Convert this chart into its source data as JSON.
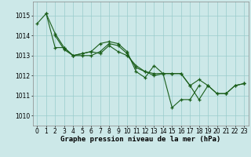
{
  "series": [
    {
      "x": [
        0,
        1,
        2,
        3,
        4,
        5,
        6,
        7,
        8,
        9,
        10,
        11,
        12,
        13,
        14,
        15,
        16,
        17,
        18,
        19,
        20,
        21,
        22,
        23
      ],
      "y": [
        1014.6,
        1015.1,
        1014.1,
        1013.4,
        1013.0,
        1013.1,
        1013.2,
        1013.6,
        1013.7,
        1013.6,
        1013.2,
        1012.2,
        1011.9,
        1012.5,
        1012.1,
        1010.4,
        1010.8,
        1010.8,
        1011.5,
        null,
        null,
        1011.1,
        null,
        1011.6
      ]
    },
    {
      "x": [
        1,
        2,
        3,
        4,
        5,
        6,
        7,
        8,
        9,
        10,
        11,
        12,
        13,
        14,
        15,
        16,
        17,
        18,
        19,
        20,
        21,
        22,
        23
      ],
      "y": [
        1015.1,
        1013.4,
        1013.4,
        1013.0,
        1013.1,
        1013.2,
        1013.1,
        1013.5,
        1013.2,
        1013.0,
        1012.5,
        1012.2,
        1012.1,
        1012.1,
        1012.1,
        1012.1,
        1011.5,
        1011.8,
        1011.5,
        1011.1,
        1011.1,
        1011.5,
        1011.6
      ]
    },
    {
      "x": [
        2,
        3,
        4,
        5,
        6,
        7,
        8,
        9,
        10,
        11,
        12,
        13,
        14,
        15,
        16,
        17,
        18,
        19,
        20,
        21,
        22,
        23
      ],
      "y": [
        1014.0,
        1013.3,
        1013.0,
        1013.0,
        1013.0,
        1013.2,
        1013.6,
        1013.5,
        1013.1,
        1012.4,
        1012.2,
        1012.0,
        1012.1,
        1012.1,
        1012.1,
        1011.5,
        1010.8,
        1011.5,
        1011.1,
        1011.1,
        1011.5,
        1011.6
      ]
    }
  ],
  "line_color": "#1a5e1a",
  "marker_color": "#1a5e1a",
  "background_color": "#cce8e8",
  "grid_color": "#99cccc",
  "xlabel": "Graphe pression niveau de la mer (hPa)",
  "xlim_min": -0.5,
  "xlim_max": 23.5,
  "ylim_min": 1009.5,
  "ylim_max": 1015.7,
  "yticks": [
    1010,
    1011,
    1012,
    1013,
    1014,
    1015
  ],
  "xticks": [
    0,
    1,
    2,
    3,
    4,
    5,
    6,
    7,
    8,
    9,
    10,
    11,
    12,
    13,
    14,
    15,
    16,
    17,
    18,
    19,
    20,
    21,
    22,
    23
  ],
  "tick_fontsize": 5.5,
  "xlabel_fontsize": 6.5,
  "marker_size": 2.5,
  "line_width": 0.8
}
